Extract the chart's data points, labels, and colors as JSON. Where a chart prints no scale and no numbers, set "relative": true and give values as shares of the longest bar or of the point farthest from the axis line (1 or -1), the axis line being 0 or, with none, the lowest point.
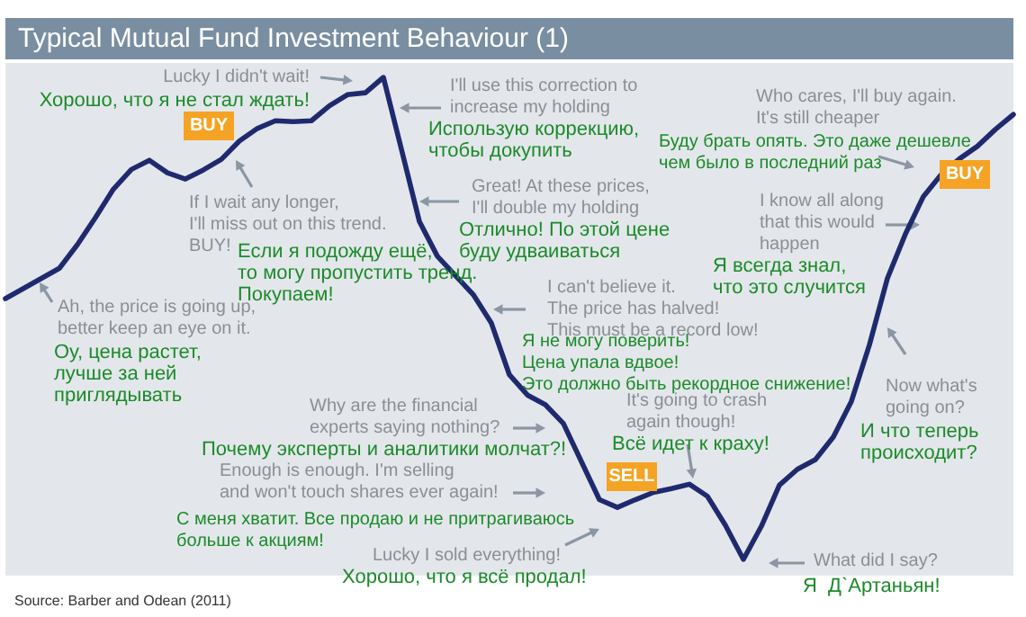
{
  "chart_data": {
    "type": "line",
    "title": "Typical Mutual Fund Investment Behaviour (1)",
    "relative": true,
    "marker": "none",
    "line_style": "solid",
    "categories": [
      null,
      null,
      null,
      null,
      null,
      null,
      null,
      null,
      null,
      null,
      null,
      null,
      null,
      null,
      null,
      null,
      null,
      null,
      null,
      null,
      null,
      null,
      null,
      null,
      null,
      null,
      null,
      null,
      null,
      null,
      null,
      null,
      null,
      null,
      null,
      null,
      null,
      null,
      null,
      null,
      null,
      null,
      null,
      null,
      null,
      null,
      null,
      null,
      null,
      null,
      null,
      null,
      null,
      null,
      null,
      null,
      null
    ],
    "series": [
      {
        "color": "#1f2a6e",
        "values": [
          0.541,
          0.562,
          0.583,
          0.604,
          0.653,
          0.709,
          0.768,
          0.809,
          0.828,
          0.802,
          0.789,
          0.808,
          0.83,
          0.868,
          0.894,
          0.91,
          0.908,
          0.91,
          0.941,
          0.964,
          0.968,
          1,
          0.851,
          0.701,
          0.629,
          0.589,
          0.549,
          0.49,
          0.383,
          0.341,
          0.321,
          0.282,
          0.203,
          0.124,
          0.108,
          0.124,
          0.139,
          0.147,
          0.156,
          0.131,
          0.071,
          0,
          0.069,
          0.154,
          0.187,
          0.207,
          0.254,
          0.328,
          0.445,
          0.583,
          0.675,
          0.753,
          0.799,
          0.831,
          0.857,
          0.892,
          0.923
        ]
      }
    ],
    "annotations": [
      "Lucky I didn't wait!",
      "Хорошо, что я не стал ждать!",
      "I'll use this correction to\nincrease my holding",
      "Использую коррекцию,\nчтобы докупить",
      "If I wait any longer,\nI'll miss out on this trend.\nBUY!",
      "Если я подожду ещё,\nто могу пропустить тренд.\nПокупаем!",
      "Ah, the price is going up,\nbetter keep an eye on it.",
      "Оу, цена растет,\nлучше за ней\nприглядывать",
      "Great! At these prices,\nI'll double my holding",
      "Отлично! По этой цене\nбуду удваиваться",
      "I can't believe it.\nThe price has halved!\nThis must be a record low!",
      "Я не могу поверить!\nЦена упала вдвое!\nЭто должно быть рекордное снижение!",
      "Why are the financial\nexperts saying nothing?",
      "Почему эксперты и аналитики молчат?!",
      "Enough is enough. I'm selling\nand won't touch shares ever again!",
      "С меня хватит. Все продаю и не притрагиваюсь\nбольше к акциям!",
      "Lucky I sold everything!",
      "Хорошо, что я всё продал!",
      "It's going to crash\nagain though!",
      "Всё идет к краху!",
      "What did I say?",
      "Я  Д`Артаньян!",
      "Now what's\ngoing on?",
      "И что теперь\nпроисходит?",
      "I know all along\nthat this would\nhappen",
      "Я всегда знал,\nчто это случится",
      "Who cares, I'll buy again.\nIt's still cheaper",
      "Буду брать опять. Это даже дешевле\nчем было в последний раз",
      "BUY",
      "BUY",
      "SELL",
      "Source: Barber and Odean (2011)"
    ]
  }
}
